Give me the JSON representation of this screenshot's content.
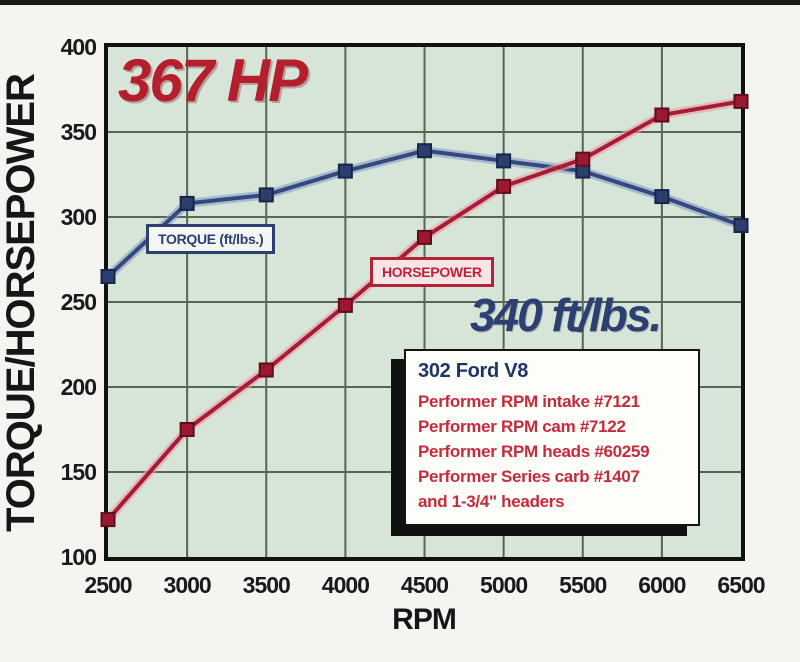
{
  "colors": {
    "page_bg": "#f4f4f0",
    "plot_bg": "#d7e4d8",
    "grid": "#556659",
    "plot_border": "#111111",
    "torque_blue": "#33497e",
    "horsepower_red": "#a81c33",
    "peak_hp_red": "#b51f2d",
    "peak_tq_navy": "#2b4070"
  },
  "annotations": {
    "hp_peak_label": "367 HP",
    "torque_peak_label": "340 ft/lbs."
  },
  "legend": {
    "torque": "TORQUE (ft/lbs.)",
    "horsepower": "HORSEPOWER"
  },
  "info_box": {
    "title": "302 Ford V8",
    "lines": [
      "Performer RPM intake #7121",
      "Performer RPM cam #7122",
      "Performer RPM heads #60259",
      "Performer Series carb #1407",
      "and 1-3/4\" headers"
    ]
  },
  "chart_data": {
    "type": "line",
    "title": "302 Ford V8 dyno results",
    "xlabel": "RPM",
    "ylabel": "TORQUE/HORSEPOWER",
    "x": [
      2500,
      3000,
      3500,
      4000,
      4500,
      5000,
      5500,
      6000,
      6500
    ],
    "xticks": [
      "2500",
      "3000",
      "3500",
      "4000",
      "4500",
      "5000",
      "5500",
      "6000",
      "6500"
    ],
    "yticks": [
      400,
      350,
      300,
      250,
      200,
      150,
      100
    ],
    "xlim": [
      2500,
      6500
    ],
    "ylim": [
      100,
      400
    ],
    "grid": true,
    "legend_position": "inline-boxes",
    "peak_horsepower": 367,
    "peak_torque_ftlbs": 340,
    "series": [
      {
        "name": "TORQUE (ft/lbs.)",
        "values": [
          265,
          308,
          313,
          327,
          339,
          333,
          327,
          312,
          295
        ],
        "line": "#33497e",
        "halo": "rgba(130,150,200,0.55)",
        "marker_fill": "#2b3e6d",
        "marker_stroke": "#17254a"
      },
      {
        "name": "HORSEPOWER",
        "values": [
          122,
          175,
          210,
          248,
          288,
          318,
          334,
          360,
          368
        ],
        "line": "#a81c33",
        "halo": "rgba(230,160,172,0.6)",
        "marker_fill": "#9c1830",
        "marker_stroke": "#5f0d1d"
      }
    ]
  }
}
